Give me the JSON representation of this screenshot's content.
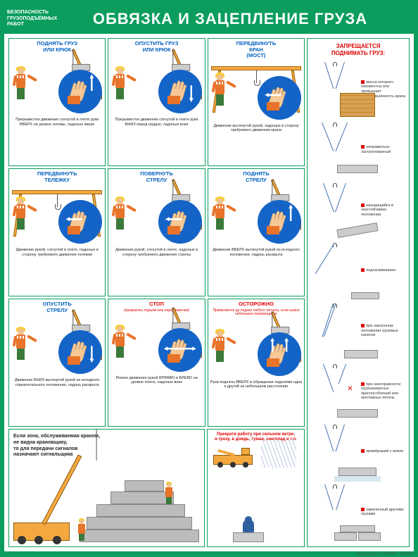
{
  "header": {
    "category": "БЕЗОПАСНОСТЬ\nГРУЗОПОДЪЁМНЫХ\nРАБОТ",
    "title": "ОБВЯЗКА И ЗАЦЕПЛЕНИЕ ГРУЗА"
  },
  "colors": {
    "poster_bg": "#0a9d5e",
    "title_blue": "#0060c0",
    "title_red": "#d00000",
    "hand_circle": "#1464c8",
    "crane_orange": "#f4a940",
    "worker_vest": "#e8732a",
    "worker_helmet": "#f7cc3a",
    "worker_pants": "#3a7a3a"
  },
  "signals": [
    {
      "title": "ПОДНЯТЬ ГРУЗ\nИЛИ КРЮК",
      "desc": "Прерывистое движение согнутой в локте руки ВВЕРХ на уровне головы, ладонью вверх",
      "scene": "truck",
      "arrow": "up"
    },
    {
      "title": "ОПУСТИТЬ ГРУЗ\nИЛИ КРЮК",
      "desc": "Прерывистое движение согнутой в локте руки ВНИЗ перед грудью, ладонью вниз",
      "scene": "truck",
      "arrow": "down"
    },
    {
      "title": "ПЕРЕДВИНУТЬ\nКРАН\n(МОСТ)",
      "desc": "Движение вытянутой рукой, ладонью в сторону требуемого движения крана",
      "scene": "gantry",
      "arrow": "side"
    },
    {
      "title": "ПЕРЕДВИНУТЬ\nТЕЛЕЖКУ",
      "desc": "Движение рукой, согнутой в локте, ладонью в сторону требуемого движения тележки",
      "scene": "gantry",
      "arrow": "side"
    },
    {
      "title": "ПОВЕРНУТЬ\nСТРЕЛУ",
      "desc": "Движение рукой, согнутой в локте, ладонью в сторону требуемого движения стрелы",
      "scene": "truck",
      "arrow": "side"
    },
    {
      "title": "ПОДНЯТЬ\nСТРЕЛУ",
      "desc": "Движение ВВЕРХ вытянутой рукой из исходного положения, ладонь раскрыта",
      "scene": "truck",
      "arrow": "up"
    },
    {
      "title": "ОПУСТИТЬ\nСТРЕЛУ",
      "desc": "Движение ВНИЗ вытянутой рукой из исходного горизонтального положения, ладонь раскрыта",
      "scene": "truck",
      "arrow": "down"
    },
    {
      "title": "СТОП",
      "subtitle": "(прекратить подъём\nили передвижение)",
      "desc": "Резкое движение рукой ВПРАВО и ВЛЕВО на уровне пояса, ладонью вниз",
      "scene": "truck",
      "arrow": "horiz",
      "red": true
    },
    {
      "title": "ОСТОРОЖНО",
      "subtitle": "Применяется до подачи любого сигнала, если нужно небольшое перемещение",
      "desc": "Руки подняты ВВЕРХ в обращении ладонями одна к другой на небольшом расстоянии",
      "scene": "truck",
      "arrow": "both",
      "red": true
    }
  ],
  "bottom_left": {
    "text": "Если зона, обслуживаемая краном,\nне видна крановщику,\nто для передачи сигналов\nназначают сигнальщика"
  },
  "bottom_right": {
    "heading": "Прекрати работу при сильном ветре,\nв грозу, в дождь, туман, снегопад и т.п."
  },
  "prohibitions": {
    "heading": "ЗАПРЕЩАЕТСЯ\nПОДНИМАТЬ ГРУЗ:",
    "items": [
      {
        "text": "масса которого неизвестна или превышает грузоподъёмность крана",
        "illus": "box"
      },
      {
        "text": "неправильно застропованный",
        "illus": "slab-bad"
      },
      {
        "text": "находящийся в неустойчивом положении",
        "illus": "slab-tilt"
      },
      {
        "text": "подтаскиванием",
        "illus": "drag"
      },
      {
        "text": "при наклонном положении грузовых канатов",
        "illus": "angled"
      },
      {
        "text": "при неисправности грузозахватных приспособлений или монтажных петель",
        "illus": "broken"
      },
      {
        "text": "примёрзший к земле",
        "illus": "frozen"
      },
      {
        "text": "заваленный другими грузами",
        "illus": "buried"
      }
    ]
  },
  "footer": "Издательство «СОУЭЛО», Москва"
}
